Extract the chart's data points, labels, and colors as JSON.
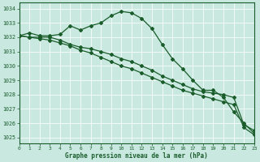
{
  "background_color": "#c8e8e0",
  "grid_color": "#b0d8cc",
  "line_color": "#1a5c2a",
  "xlabel": "Graphe pression niveau de la mer (hPa)",
  "xlim": [
    0,
    23
  ],
  "ylim": [
    1024.6,
    1034.4
  ],
  "yticks": [
    1025,
    1026,
    1027,
    1028,
    1029,
    1030,
    1031,
    1032,
    1033,
    1034
  ],
  "xticks": [
    0,
    1,
    2,
    3,
    4,
    5,
    6,
    7,
    8,
    9,
    10,
    11,
    12,
    13,
    14,
    15,
    16,
    17,
    18,
    19,
    20,
    21,
    22,
    23
  ],
  "series": [
    {
      "x": [
        0,
        1,
        2,
        3,
        4,
        5,
        6,
        7,
        8,
        9,
        10,
        11,
        12,
        13,
        14,
        15,
        16,
        17,
        18,
        19,
        20,
        21,
        22,
        23
      ],
      "y": [
        1032.1,
        1032.3,
        1032.1,
        1032.1,
        1032.2,
        1032.8,
        1032.5,
        1032.8,
        1033.0,
        1033.5,
        1033.8,
        1033.7,
        1033.3,
        1032.6,
        1031.5,
        1030.5,
        1029.8,
        1029.0,
        1028.3,
        1028.3,
        1027.8,
        1026.8,
        1026.0,
        1025.3
      ]
    },
    {
      "x": [
        0,
        1,
        2,
        3,
        4,
        5,
        6,
        7,
        8,
        9,
        10,
        11,
        12,
        13,
        14,
        15,
        16,
        17,
        18,
        19,
        20,
        21,
        22,
        23
      ],
      "y": [
        1032.1,
        1032.0,
        1032.0,
        1032.0,
        1031.8,
        1031.5,
        1031.3,
        1031.2,
        1031.0,
        1030.8,
        1030.5,
        1030.3,
        1030.0,
        1029.7,
        1029.3,
        1029.0,
        1028.7,
        1028.4,
        1028.2,
        1028.1,
        1028.0,
        1027.8,
        1025.9,
        1025.5
      ]
    },
    {
      "x": [
        0,
        1,
        2,
        3,
        4,
        5,
        6,
        7,
        8,
        9,
        10,
        11,
        12,
        13,
        14,
        15,
        16,
        17,
        18,
        19,
        20,
        21,
        22,
        23
      ],
      "y": [
        1032.1,
        1032.0,
        1031.9,
        1031.8,
        1031.6,
        1031.4,
        1031.1,
        1030.9,
        1030.6,
        1030.3,
        1030.0,
        1029.8,
        1029.5,
        1029.2,
        1028.9,
        1028.6,
        1028.3,
        1028.1,
        1027.9,
        1027.7,
        1027.5,
        1027.3,
        1025.7,
        1025.2
      ]
    }
  ]
}
